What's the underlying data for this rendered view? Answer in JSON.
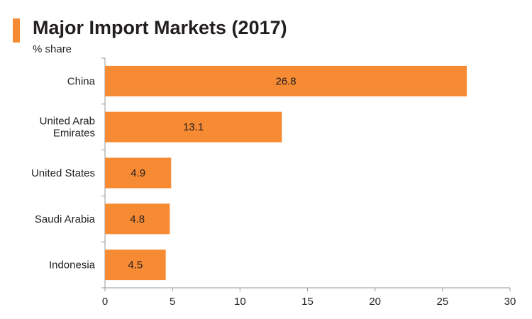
{
  "chart_data": {
    "type": "bar",
    "orientation": "horizontal",
    "title": "Major Import Markets (2017)",
    "subtitle": "% share",
    "categories": [
      "China",
      "United Arab Emirates",
      "United States",
      "Saudi Arabia",
      "Indonesia"
    ],
    "category_lines": [
      [
        "China"
      ],
      [
        "United Arab",
        "Emirates"
      ],
      [
        "United States"
      ],
      [
        "Saudi Arabia"
      ],
      [
        "Indonesia"
      ]
    ],
    "values": [
      26.8,
      13.1,
      4.9,
      4.8,
      4.5
    ],
    "value_labels": [
      "26.8",
      "13.1",
      "4.9",
      "4.8",
      "4.5"
    ],
    "xlim": [
      0,
      30
    ],
    "x_ticks": [
      "0",
      "5",
      "10",
      "15",
      "20",
      "25",
      "30"
    ],
    "xlabel": "",
    "ylabel": "",
    "grid": false,
    "legend": "none",
    "colors": {
      "bar": "#f68b33",
      "accent": "#f68b33",
      "axis": "#999999",
      "text": "#231f20"
    }
  }
}
